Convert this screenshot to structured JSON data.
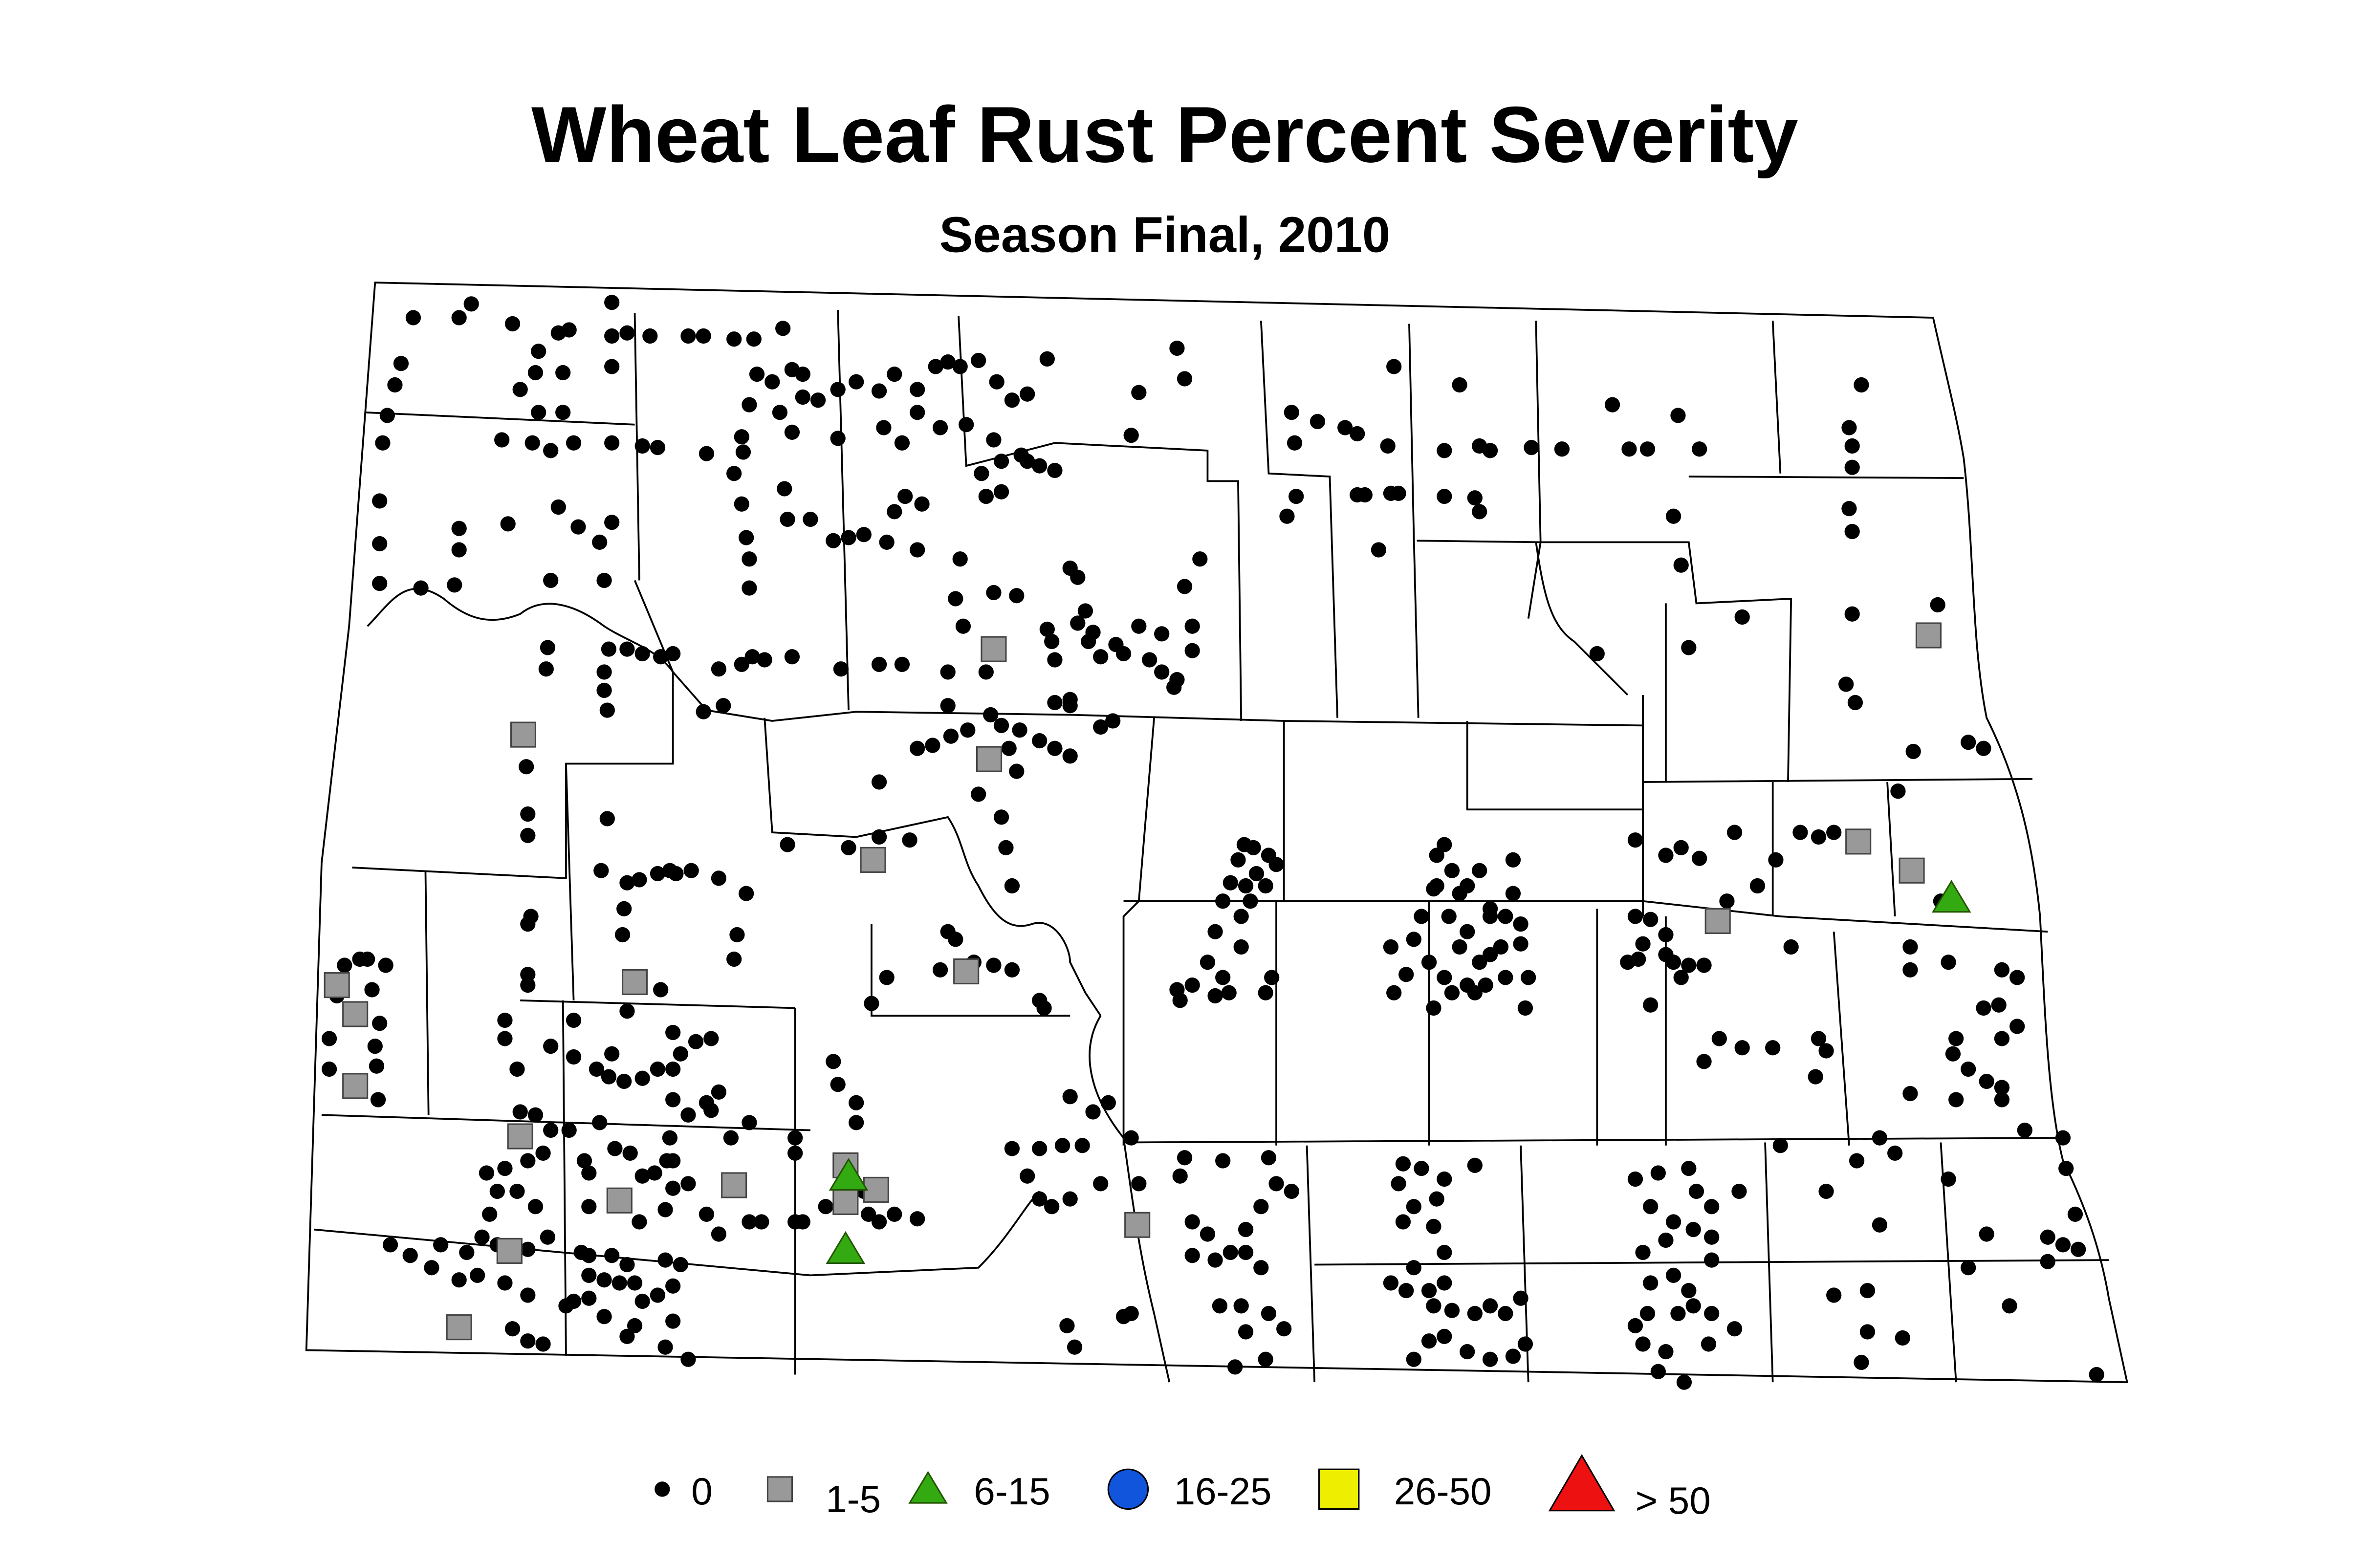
{
  "title": "Wheat Leaf Rust Percent Severity",
  "subtitle": "Season Final, 2010",
  "colors": {
    "zero": "#000000",
    "sev_1_5": "#999999",
    "sev_6_15": "#33aa11",
    "sev_16_25": "#1155dd",
    "sev_26_50": "#eeee00",
    "sev_gt_50": "#ee1111",
    "outline": "#000000"
  },
  "legend": [
    {
      "symbol": "circle-small",
      "label": "0",
      "color": "#000000"
    },
    {
      "symbol": "square",
      "label": "1-5",
      "color": "#999999"
    },
    {
      "symbol": "triangle-small",
      "label": "6-15",
      "color": "#33aa11"
    },
    {
      "symbol": "circle-large",
      "label": "16-25",
      "color": "#1155dd"
    },
    {
      "symbol": "square-large",
      "label": "26-50",
      "color": "#eeee00"
    },
    {
      "symbol": "triangle-large",
      "label": "> 50",
      "color": "#ee1111"
    }
  ]
}
